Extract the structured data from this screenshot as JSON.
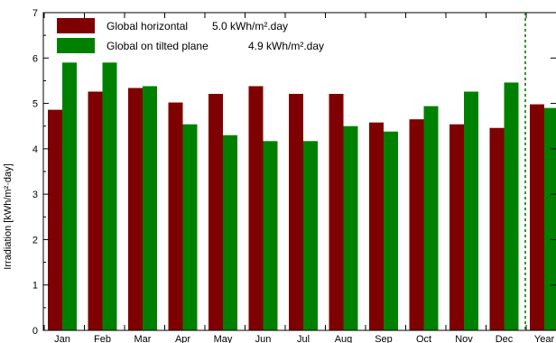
{
  "chart_data": {
    "type": "bar",
    "title": "",
    "ylabel": "Irradiation  [kWh/m²·day]",
    "xlabel": "",
    "ylim": [
      0,
      7
    ],
    "yticks": [
      0,
      1,
      2,
      3,
      4,
      5,
      6,
      7
    ],
    "grid": false,
    "legend_position": "top-left",
    "categories": [
      "Jan",
      "Feb",
      "Mar",
      "Apr",
      "May",
      "Jun",
      "Jul",
      "Aug",
      "Sep",
      "Oct",
      "Nov",
      "Dec",
      "Year"
    ],
    "separator_before": "Year",
    "series": [
      {
        "name": "Global horizontal",
        "legend_value": "5.0 kWh/m².day",
        "color": "#7f0000",
        "values": [
          4.86,
          5.26,
          5.34,
          5.02,
          5.21,
          5.38,
          5.21,
          5.21,
          4.58,
          4.65,
          4.54,
          4.46,
          4.98
        ]
      },
      {
        "name": "Global on tilted plane",
        "legend_value": "4.9 kWh/m².day",
        "color": "#008000",
        "values": [
          5.9,
          5.9,
          5.38,
          4.54,
          4.3,
          4.17,
          4.17,
          4.5,
          4.38,
          4.94,
          5.26,
          5.46,
          4.9
        ]
      }
    ]
  }
}
